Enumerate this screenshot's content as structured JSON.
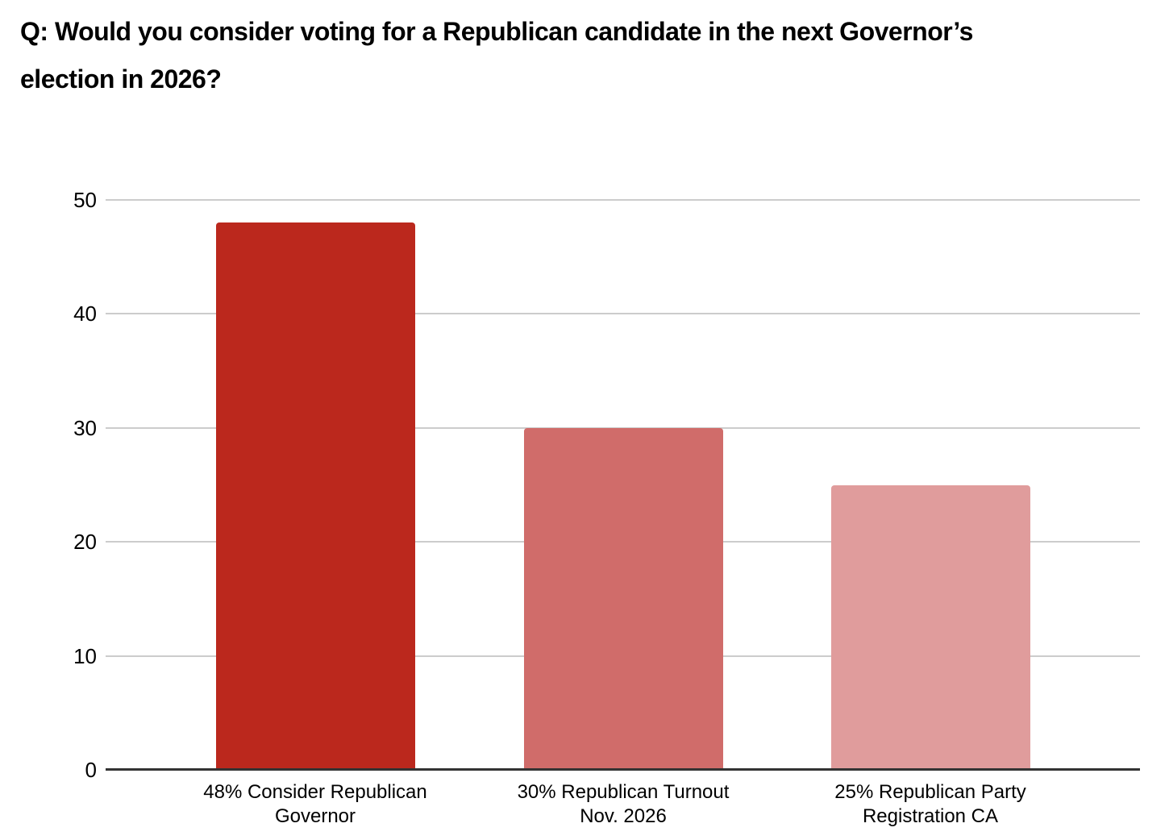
{
  "title": {
    "lines": [
      "Q: Would you consider voting for a Republican candidate in the next Governor’s",
      "election in 2026?"
    ]
  },
  "chart_data": {
    "type": "bar",
    "title": "Q: Would you consider voting for a Republican candidate in the next Governor’s election in 2026?",
    "categories": [
      "48% Consider Republican Governor",
      "30% Republican Turnout Nov. 2026",
      "25% Republican Party Registration CA"
    ],
    "category_label_lines": [
      [
        "48% Consider Republican",
        "Governor"
      ],
      [
        "30% Republican Turnout",
        "Nov. 2026"
      ],
      [
        "25% Republican Party",
        "Registration CA"
      ]
    ],
    "values": [
      48,
      30,
      25
    ],
    "bar_colors": [
      "#bb281d",
      "#d06c6a",
      "#e09c9c"
    ],
    "xlabel": "",
    "ylabel": "",
    "ylim": [
      0,
      50
    ],
    "yticks": [
      0,
      10,
      20,
      30,
      40,
      50
    ],
    "grid": true,
    "legend_position": "none",
    "gridline_color": "#cccccc",
    "axis_line_color": "#333333",
    "text_color": "#000000"
  }
}
